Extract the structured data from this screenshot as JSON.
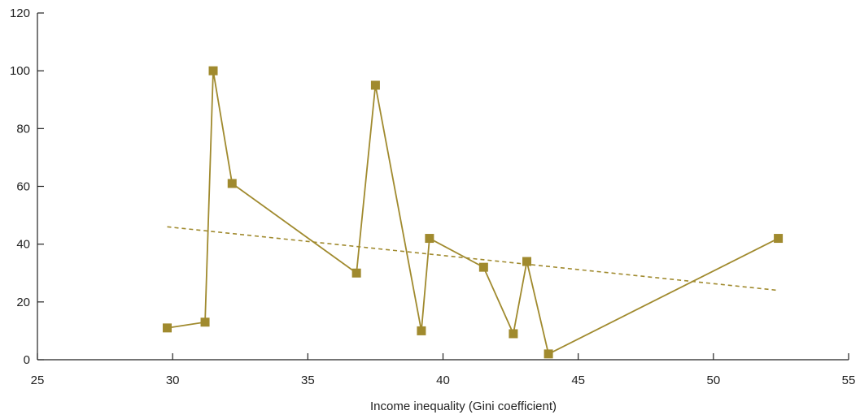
{
  "chart_data": {
    "type": "scatter",
    "title": "",
    "xlabel": "Income inequality (Gini coefficient)",
    "ylabel": "",
    "xlim": [
      25,
      55
    ],
    "ylim": [
      0,
      120
    ],
    "x_ticks": [
      25,
      30,
      35,
      40,
      45,
      50,
      55
    ],
    "y_ticks": [
      0,
      20,
      40,
      60,
      80,
      100,
      120
    ],
    "grid": false,
    "legend": "none",
    "series": [
      {
        "style": "line-with-square-markers",
        "color": "#a08a2e",
        "points": [
          {
            "x": 29.8,
            "y": 11
          },
          {
            "x": 31.2,
            "y": 13
          },
          {
            "x": 31.5,
            "y": 100
          },
          {
            "x": 32.2,
            "y": 61
          },
          {
            "x": 36.8,
            "y": 30
          },
          {
            "x": 37.5,
            "y": 95
          },
          {
            "x": 39.2,
            "y": 10
          },
          {
            "x": 39.5,
            "y": 42
          },
          {
            "x": 41.5,
            "y": 32
          },
          {
            "x": 42.6,
            "y": 9
          },
          {
            "x": 43.1,
            "y": 34
          },
          {
            "x": 43.9,
            "y": 2
          },
          {
            "x": 52.4,
            "y": 42
          }
        ]
      }
    ],
    "trendline": {
      "style": "dashed",
      "color": "#a08a2e",
      "x": [
        29.8,
        52.4
      ],
      "y": [
        46,
        24
      ]
    }
  }
}
